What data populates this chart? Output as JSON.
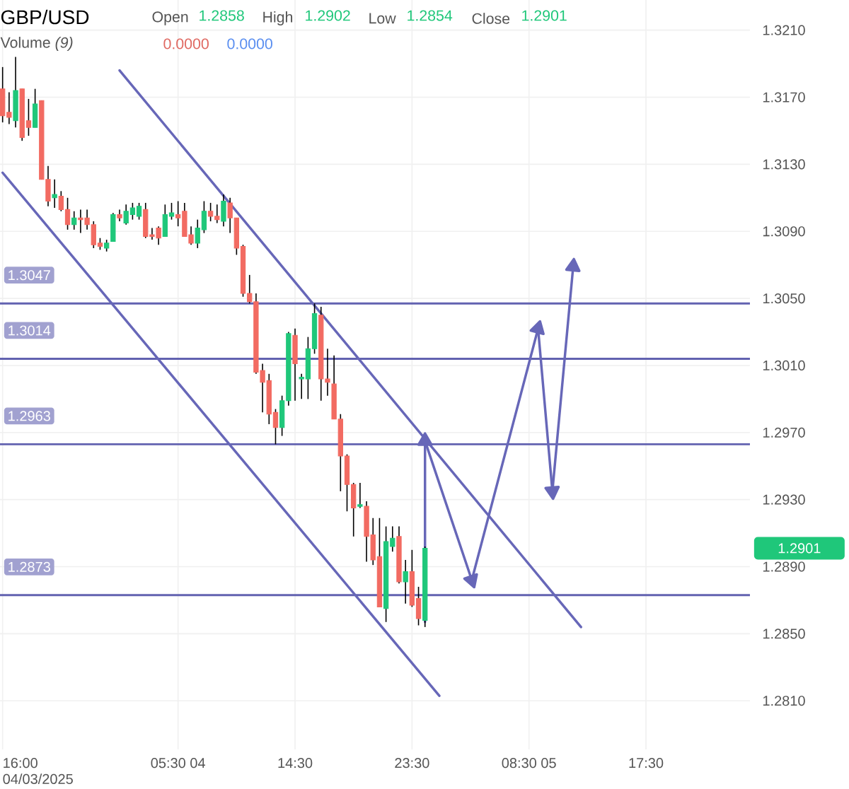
{
  "chart_data": {
    "type": "candlestick",
    "title": "GBP/USD",
    "x": [
      "2025-04-03T16:00",
      "2025-04-03T16:30",
      "2025-04-03T17:00",
      "2025-04-03T17:30",
      "2025-04-03T18:00",
      "2025-04-03T18:30",
      "2025-04-03T19:00",
      "2025-04-03T19:30",
      "2025-04-03T20:00",
      "2025-04-03T20:30",
      "2025-04-03T21:00",
      "2025-04-03T21:30",
      "2025-04-03T22:00",
      "2025-04-03T22:30",
      "2025-04-03T23:00",
      "2025-04-03T23:30",
      "2025-04-04T00:00",
      "2025-04-04T00:30",
      "2025-04-04T01:00",
      "2025-04-04T01:30",
      "2025-04-04T02:00",
      "2025-04-04T02:30",
      "2025-04-04T03:00",
      "2025-04-04T03:30",
      "2025-04-04T04:00",
      "2025-04-04T04:30",
      "2025-04-04T05:00",
      "2025-04-04T05:30",
      "2025-04-04T06:00",
      "2025-04-04T06:30",
      "2025-04-04T07:00",
      "2025-04-04T07:30",
      "2025-04-04T08:00",
      "2025-04-04T08:30",
      "2025-04-04T09:00",
      "2025-04-04T09:30",
      "2025-04-04T10:00",
      "2025-04-04T10:30",
      "2025-04-04T11:00",
      "2025-04-04T11:30",
      "2025-04-04T12:00",
      "2025-04-04T12:30",
      "2025-04-04T13:00",
      "2025-04-04T13:30",
      "2025-04-04T14:00",
      "2025-04-04T14:30",
      "2025-04-04T15:00",
      "2025-04-04T15:30",
      "2025-04-04T16:00",
      "2025-04-04T16:30",
      "2025-04-04T17:00",
      "2025-04-04T17:30",
      "2025-04-04T18:00",
      "2025-04-04T18:30",
      "2025-04-04T19:00",
      "2025-04-04T19:30",
      "2025-04-04T20:00",
      "2025-04-04T20:30",
      "2025-04-04T21:00",
      "2025-04-04T21:30",
      "2025-04-04T22:00",
      "2025-04-04T22:30",
      "2025-04-04T23:00",
      "2025-04-04T23:30",
      "2025-04-05T00:00",
      "2025-04-05T00:30"
    ],
    "ohlc": [
      [
        1.3175,
        1.3188,
        1.3155,
        1.3159
      ],
      [
        1.3161,
        1.3173,
        1.3154,
        1.3158
      ],
      [
        1.3156,
        1.3194,
        1.3152,
        1.3174
      ],
      [
        1.3175,
        1.3175,
        1.3144,
        1.3146
      ],
      [
        1.3156,
        1.3169,
        1.3147,
        1.3152
      ],
      [
        1.3152,
        1.3175,
        1.3152,
        1.3166
      ],
      [
        1.3168,
        1.3168,
        1.3121,
        1.3121
      ],
      [
        1.3121,
        1.3129,
        1.3105,
        1.3108
      ],
      [
        1.311,
        1.3121,
        1.3104,
        1.3112
      ],
      [
        1.3111,
        1.3114,
        1.3102,
        1.3103
      ],
      [
        1.3103,
        1.311,
        1.3091,
        1.3094
      ],
      [
        1.3094,
        1.3102,
        1.3091,
        1.3098
      ],
      [
        1.3098,
        1.3103,
        1.3089,
        1.3097
      ],
      [
        1.3098,
        1.3103,
        1.3091,
        1.3094
      ],
      [
        1.3094,
        1.3096,
        1.308,
        1.3082
      ],
      [
        1.3083,
        1.3086,
        1.3079,
        1.3081
      ],
      [
        1.308,
        1.3085,
        1.3078,
        1.3083
      ],
      [
        1.3084,
        1.3101,
        1.3084,
        1.31
      ],
      [
        1.31,
        1.3103,
        1.3096,
        1.3098
      ],
      [
        1.3095,
        1.3106,
        1.3094,
        1.3102
      ],
      [
        1.31,
        1.3107,
        1.3097,
        1.3104
      ],
      [
        1.3099,
        1.3107,
        1.3097,
        1.3105
      ],
      [
        1.3103,
        1.3107,
        1.3086,
        1.3087
      ],
      [
        1.3088,
        1.3092,
        1.3085,
        1.3087
      ],
      [
        1.3092,
        1.3093,
        1.3082,
        1.3086
      ],
      [
        1.3087,
        1.3106,
        1.3087,
        1.31
      ],
      [
        1.3099,
        1.3107,
        1.3097,
        1.3101
      ],
      [
        1.31,
        1.3108,
        1.3093,
        1.3098
      ],
      [
        1.3102,
        1.3107,
        1.3087,
        1.3087
      ],
      [
        1.3088,
        1.3093,
        1.3082,
        1.3083
      ],
      [
        1.3083,
        1.3097,
        1.308,
        1.3092
      ],
      [
        1.3091,
        1.3108,
        1.3089,
        1.3102
      ],
      [
        1.3102,
        1.3107,
        1.3096,
        1.3099
      ],
      [
        1.3099,
        1.3106,
        1.3095,
        1.3097
      ],
      [
        1.3096,
        1.3112,
        1.3093,
        1.3108
      ],
      [
        1.3107,
        1.311,
        1.3089,
        1.3098
      ],
      [
        1.3098,
        1.3098,
        1.3076,
        1.308
      ],
      [
        1.3081,
        1.3082,
        1.3051,
        1.3053
      ],
      [
        1.3053,
        1.3064,
        1.3047,
        1.3048
      ],
      [
        1.3048,
        1.3053,
        1.3005,
        1.3006
      ],
      [
        1.3007,
        1.3011,
        1.2982,
        1.3
      ],
      [
        1.3001,
        1.3005,
        1.2975,
        1.2981
      ],
      [
        1.2982,
        1.2984,
        1.2963,
        1.2973
      ],
      [
        1.2973,
        1.2992,
        1.2968,
        1.2989
      ],
      [
        1.2989,
        1.303,
        1.2986,
        1.3029
      ],
      [
        1.3028,
        1.3032,
        1.2989,
        1.3011
      ],
      [
        1.3002,
        1.3005,
        1.299,
        1.3003
      ],
      [
        1.3002,
        1.3027,
        1.299,
        1.302
      ],
      [
        1.302,
        1.3047,
        1.3017,
        1.3041
      ],
      [
        1.304,
        1.3045,
        1.2989,
        1.3002
      ],
      [
        1.3002,
        1.302,
        1.2992,
        1.3
      ],
      [
        1.2999,
        1.3016,
        1.2978,
        1.2978
      ],
      [
        1.2978,
        1.2981,
        1.2935,
        1.2956
      ],
      [
        1.2956,
        1.2957,
        1.2923,
        1.2939
      ],
      [
        1.2939,
        1.294,
        1.2908,
        1.2925
      ],
      [
        1.2926,
        1.294,
        1.2925,
        1.2927
      ],
      [
        1.2926,
        1.2929,
        1.2893,
        1.2908
      ],
      [
        1.2909,
        1.2919,
        1.2891,
        1.2894
      ],
      [
        1.2896,
        1.2919,
        1.2866,
        1.2866
      ],
      [
        1.2865,
        1.2914,
        1.2857,
        1.2905
      ],
      [
        1.2902,
        1.2914,
        1.2899,
        1.2907
      ],
      [
        1.2908,
        1.2914,
        1.288,
        1.2881
      ],
      [
        1.2881,
        1.2894,
        1.2868,
        1.2887
      ],
      [
        1.2887,
        1.29,
        1.2866,
        1.2867
      ],
      [
        1.2871,
        1.2878,
        1.2855,
        1.2859
      ],
      [
        1.2858,
        1.2902,
        1.2854,
        1.2901
      ]
    ],
    "series": [
      {
        "type": "line",
        "color": "#6767b8",
        "x": [
          "2025-04-04T01:00",
          "2025-04-05T12:30"
        ],
        "values": [
          1.3186,
          1.2854
        ]
      },
      {
        "type": "line",
        "color": "#6767b8",
        "x": [
          "2025-04-03T16:00",
          "2025-04-05T01:36"
        ],
        "values": [
          1.3125,
          1.2813
        ]
      },
      {
        "type": "line",
        "color": "#6767b8",
        "marker": "triangle",
        "x": [
          "2025-04-05T00:30",
          "2025-04-05T00:30"
        ],
        "values": [
          1.2857,
          1.2965
        ]
      },
      {
        "type": "line",
        "color": "#6767b8",
        "marker": "triangle",
        "x": [
          "2025-04-05T00:30",
          "2025-04-05T04:06"
        ],
        "values": [
          1.2965,
          1.2882
        ]
      },
      {
        "type": "line",
        "color": "#6767b8",
        "marker": "triangle",
        "x": [
          "2025-04-05T04:06",
          "2025-04-05T09:12"
        ],
        "values": [
          1.2882,
          1.3032
        ]
      },
      {
        "type": "line",
        "color": "#6767b8",
        "marker": "triangle",
        "x": [
          "2025-04-05T09:12",
          "2025-04-05T10:18"
        ],
        "values": [
          1.3032,
          1.2935
        ]
      },
      {
        "type": "line",
        "color": "#6767b8",
        "marker": "triangle",
        "x": [
          "2025-04-05T10:18",
          "2025-04-05T11:54"
        ],
        "values": [
          1.2935,
          1.3069
        ]
      }
    ],
    "ref_lines": [
      {
        "axis": "y",
        "value": 1.3047,
        "label": "1.3047",
        "color": "#6262b0"
      },
      {
        "axis": "y",
        "value": 1.3014,
        "label": "1.3014",
        "color": "#6262b0"
      },
      {
        "axis": "y",
        "value": 1.2963,
        "label": "1.2963",
        "color": "#6262b0"
      },
      {
        "axis": "y",
        "value": 1.2873,
        "label": "1.2873",
        "color": "#6262b0"
      }
    ],
    "xlim": [
      "2025-04-03T15:48",
      "2025-04-06T01:30"
    ],
    "ylim": [
      1.2781,
      1.3228
    ],
    "xticks": [
      {
        "value": "2025-04-03T16:00",
        "label": "16:00 04/03/2025"
      },
      {
        "value": "2025-04-04T05:30",
        "label": "05:30 04"
      },
      {
        "value": "2025-04-04T14:30",
        "label": "14:30"
      },
      {
        "value": "2025-04-04T23:30",
        "label": "23:30"
      },
      {
        "value": "2025-04-05T08:30",
        "label": "08:30 05"
      },
      {
        "value": "2025-04-05T17:30",
        "label": "17:30"
      }
    ],
    "yticks": [
      {
        "value": 1.281,
        "label": "1.2810"
      },
      {
        "value": 1.285,
        "label": "1.2850"
      },
      {
        "value": 1.289,
        "label": "1.2890"
      },
      {
        "value": 1.293,
        "label": "1.2930"
      },
      {
        "value": 1.297,
        "label": "1.2970"
      },
      {
        "value": 1.301,
        "label": "1.3010"
      },
      {
        "value": 1.305,
        "label": "1.3050"
      },
      {
        "value": 1.309,
        "label": "1.3090"
      },
      {
        "value": 1.313,
        "label": "1.3130"
      },
      {
        "value": 1.317,
        "label": "1.3170"
      },
      {
        "value": 1.321,
        "label": "1.3210"
      }
    ],
    "grid": true,
    "annotations": [
      "Open",
      "1.2858",
      "High",
      "1.2902",
      "Low",
      "1.2854",
      "Close",
      "1.2901",
      "Volume *(9)*",
      "0.0000",
      "0.0000",
      "1.2901"
    ]
  }
}
